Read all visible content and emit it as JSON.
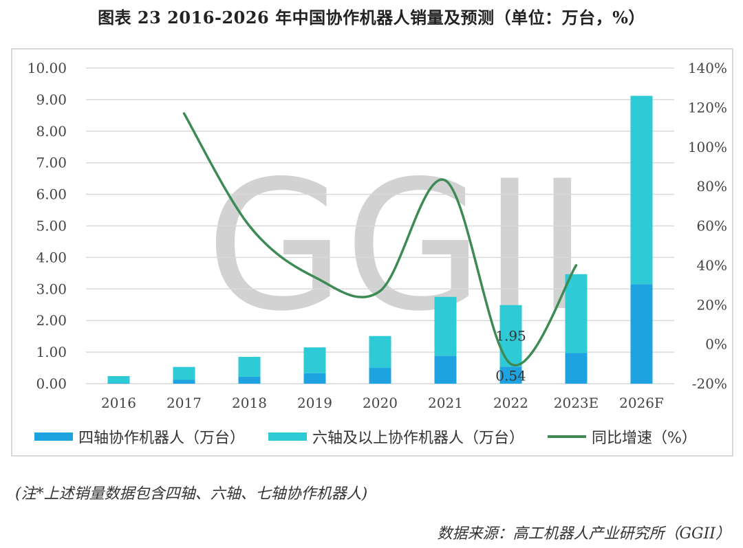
{
  "title": "图表 23  2016-2026 年中国协作机器人销量及预测（单位：万台，%）",
  "watermark": "GGII",
  "note": "(注*上述销量数据包含四轴、六轴、七轴协作机器人)",
  "source": "数据来源：高工机器人产业研究所（GGII）",
  "legend": [
    {
      "label": "四轴协作机器人（万台）",
      "color": "#1fa3e0"
    },
    {
      "label": "六轴及以上协作机器人（万台）",
      "color": "#2ecad6"
    },
    {
      "label": "同比增速（%）",
      "color": "#3d8a55"
    }
  ],
  "chart_data": {
    "type": "bar",
    "stacked": true,
    "categories": [
      "2016",
      "2017",
      "2018",
      "2019",
      "2020",
      "2021",
      "2022",
      "2023E",
      "2026F"
    ],
    "series": [
      {
        "name": "四轴协作机器人（万台）",
        "values": [
          0.02,
          0.12,
          0.22,
          0.33,
          0.5,
          0.88,
          0.54,
          0.97,
          3.15
        ],
        "color": "#1fa3e0",
        "axis": "left"
      },
      {
        "name": "六轴及以上协作机器人（万台）",
        "values": [
          0.22,
          0.41,
          0.63,
          0.82,
          1.01,
          1.87,
          1.95,
          2.5,
          5.97
        ],
        "color": "#2ecad6",
        "axis": "left"
      },
      {
        "name": "同比增速（%）",
        "type": "line",
        "values": [
          null,
          117,
          60,
          34,
          27,
          83,
          -10,
          40,
          null
        ],
        "color": "#3d8a55",
        "axis": "right"
      }
    ],
    "data_labels": [
      {
        "category": "2022",
        "series": "六轴及以上协作机器人（万台）",
        "text": "1.95"
      },
      {
        "category": "2022",
        "series": "四轴协作机器人（万台）",
        "text": "0.54"
      }
    ],
    "y_left": {
      "min": 0,
      "max": 10,
      "step": 1,
      "ticks": [
        "0.00",
        "1.00",
        "2.00",
        "3.00",
        "4.00",
        "5.00",
        "6.00",
        "7.00",
        "8.00",
        "9.00",
        "10.00"
      ]
    },
    "y_right": {
      "min": -20,
      "max": 140,
      "step": 20,
      "ticks": [
        "-20%",
        "0%",
        "20%",
        "40%",
        "60%",
        "80%",
        "100%",
        "120%",
        "140%"
      ]
    },
    "grid": true,
    "legend_position": "bottom"
  }
}
